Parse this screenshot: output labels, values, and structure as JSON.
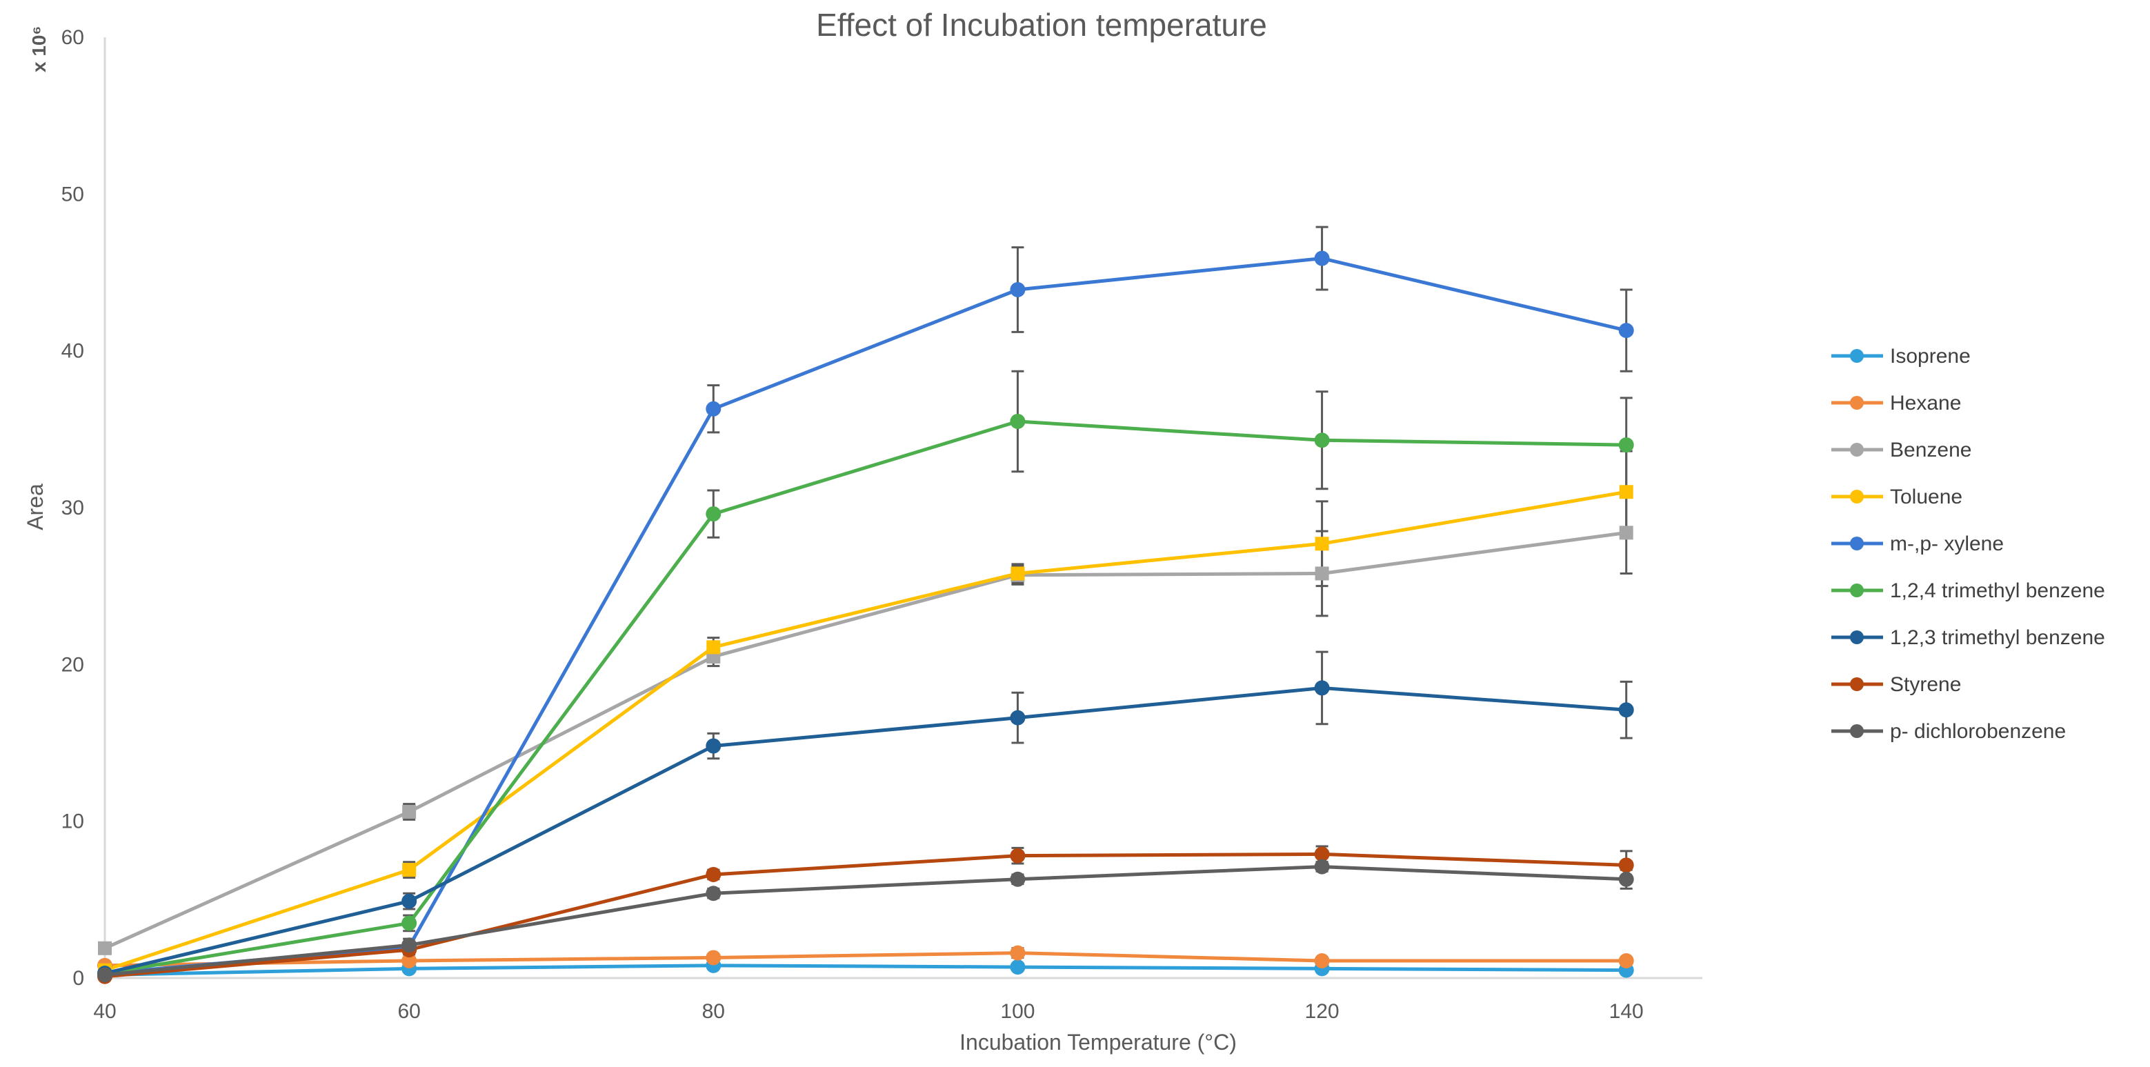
{
  "chart_data": {
    "type": "line",
    "title": "Effect of Incubation temperature",
    "xlabel": "Incubation Temperature (°C)",
    "ylabel": "Area",
    "y_multiplier_label": "x 10⁶",
    "x": [
      40,
      60,
      80,
      100,
      120,
      140
    ],
    "xlim": [
      40,
      145
    ],
    "ylim": [
      0,
      60
    ],
    "x_ticks": [
      40,
      60,
      80,
      100,
      120,
      140
    ],
    "y_ticks": [
      0,
      10,
      20,
      30,
      40,
      50,
      60
    ],
    "grid": false,
    "legend_position": "right",
    "series": [
      {
        "name": "Isoprene",
        "color": "#2e9fd9",
        "marker": "circle",
        "values": [
          0.2,
          0.6,
          0.8,
          0.7,
          0.6,
          0.5
        ],
        "errors": [
          0.1,
          0.1,
          0.2,
          0.2,
          0.2,
          0.2
        ]
      },
      {
        "name": "Hexane",
        "color": "#f0893e",
        "marker": "circle",
        "values": [
          0.8,
          1.1,
          1.3,
          1.6,
          1.1,
          1.1
        ],
        "errors": [
          0.1,
          0.2,
          0.2,
          0.3,
          0.2,
          0.2
        ]
      },
      {
        "name": "Benzene",
        "color": "#a6a6a6",
        "marker": "square",
        "values": [
          1.9,
          10.6,
          20.5,
          25.7,
          25.8,
          28.4
        ],
        "errors": [
          0.2,
          0.5,
          0.6,
          0.6,
          2.7,
          2.6
        ]
      },
      {
        "name": "Toluene",
        "color": "#ffc000",
        "marker": "square",
        "values": [
          0.5,
          6.9,
          21.1,
          25.8,
          27.7,
          31.0
        ],
        "errors": [
          0.1,
          0.5,
          0.6,
          0.6,
          2.7,
          2.6
        ]
      },
      {
        "name": "m-,p- xylene",
        "color": "#3a78d4",
        "marker": "circle",
        "values": [
          0.3,
          2.0,
          36.3,
          43.9,
          45.9,
          41.3
        ],
        "errors": [
          0.1,
          0.5,
          1.5,
          2.7,
          2.0,
          2.6
        ]
      },
      {
        "name": "1,2,4 trimethyl benzene",
        "color": "#4cae4c",
        "marker": "circle",
        "values": [
          0.3,
          3.5,
          29.6,
          35.5,
          34.3,
          34.0
        ],
        "errors": [
          0.1,
          0.5,
          1.5,
          3.2,
          3.1,
          3.0
        ]
      },
      {
        "name": "1,2,3 trimethyl benzene",
        "color": "#1f5f96",
        "marker": "circle",
        "values": [
          0.3,
          4.9,
          14.8,
          16.6,
          18.5,
          17.1
        ],
        "errors": [
          0.1,
          0.5,
          0.8,
          1.6,
          2.3,
          1.8
        ]
      },
      {
        "name": "Styrene",
        "color": "#b5470f",
        "marker": "circle",
        "values": [
          0.1,
          1.8,
          6.6,
          7.8,
          7.9,
          7.2
        ],
        "errors": [
          0.1,
          0.2,
          0.3,
          0.5,
          0.5,
          0.9
        ]
      },
      {
        "name": "p- dichlorobenzene",
        "color": "#5f5f5f",
        "marker": "circle",
        "values": [
          0.2,
          2.1,
          5.4,
          6.3,
          7.1,
          6.3
        ],
        "errors": [
          0.1,
          0.2,
          0.3,
          0.3,
          0.3,
          0.6
        ]
      }
    ]
  }
}
